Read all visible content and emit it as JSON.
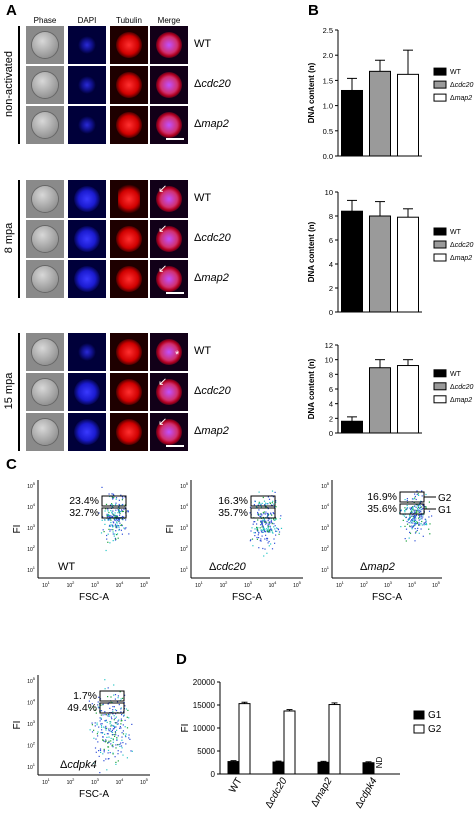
{
  "panels": {
    "A": "A",
    "B": "B",
    "C": "C",
    "D": "D"
  },
  "panelA": {
    "columns": [
      "Phase",
      "DAPI",
      "Tubulin",
      "Merge"
    ],
    "groups": [
      {
        "label": "non-activated",
        "strains": [
          "WT",
          "Δcdc20",
          "Δmap2"
        ]
      },
      {
        "label": "8 mpa",
        "strains": [
          "WT",
          "Δcdc20",
          "Δmap2"
        ]
      },
      {
        "label": "15 mpa",
        "strains": [
          "WT",
          "Δcdc20",
          "Δmap2"
        ]
      }
    ]
  },
  "chart_data": [
    {
      "id": "B1",
      "type": "bar",
      "categories": [
        "WT",
        "Δcdc20",
        "Δmap2"
      ],
      "values": [
        1.3,
        1.68,
        1.62
      ],
      "errors": [
        0.24,
        0.22,
        0.48
      ],
      "ylabel": "DNA content (n)",
      "ylim": [
        0,
        2.5
      ],
      "yticks": [
        "0.0",
        "0.5",
        "1.0",
        "1.5",
        "2.0",
        "2.5"
      ],
      "colors": [
        "#000000",
        "#9a9a9a",
        "#ffffff"
      ],
      "legend": [
        "WT",
        "Δcdc20",
        "Δmap2"
      ],
      "legend_position": "right"
    },
    {
      "id": "B2",
      "type": "bar",
      "categories": [
        "WT",
        "Δcdc20",
        "Δmap2"
      ],
      "values": [
        8.4,
        8.0,
        7.9
      ],
      "errors": [
        0.9,
        1.2,
        0.7
      ],
      "ylabel": "DNA content (n)",
      "ylim": [
        0,
        10
      ],
      "yticks": [
        "0",
        "2",
        "4",
        "6",
        "8",
        "10"
      ],
      "colors": [
        "#000000",
        "#9a9a9a",
        "#ffffff"
      ],
      "legend": [
        "WT",
        "Δcdc20",
        "Δmap2"
      ],
      "legend_position": "right"
    },
    {
      "id": "B3",
      "type": "bar",
      "categories": [
        "WT",
        "Δcdc20",
        "Δmap2"
      ],
      "values": [
        1.6,
        8.9,
        9.2
      ],
      "errors": [
        0.6,
        1.1,
        0.8
      ],
      "ylabel": "DNA content (n)",
      "ylim": [
        0,
        12
      ],
      "yticks": [
        "0",
        "2",
        "4",
        "6",
        "8",
        "10",
        "12"
      ],
      "colors": [
        "#000000",
        "#9a9a9a",
        "#ffffff"
      ],
      "legend": [
        "WT",
        "Δcdc20",
        "Δmap2"
      ],
      "legend_position": "right"
    },
    {
      "id": "C1",
      "type": "scatter",
      "strain": "WT",
      "gates": [
        "23.4%",
        "32.7%"
      ],
      "xlabel": "FSC-A",
      "ylabel": "FI"
    },
    {
      "id": "C2",
      "type": "scatter",
      "strain": "Δcdc20",
      "gates": [
        "16.3%",
        "35.7%"
      ],
      "xlabel": "FSC-A",
      "ylabel": "FI"
    },
    {
      "id": "C3",
      "type": "scatter",
      "strain": "Δmap2",
      "gates": [
        "16.9%",
        "35.6%"
      ],
      "gate_labels": [
        "G2",
        "G1"
      ],
      "xlabel": "FSC-A",
      "ylabel": "FI"
    },
    {
      "id": "C4",
      "type": "scatter",
      "strain": "Δcdpk4",
      "gates": [
        "1.7%",
        "49.4%"
      ],
      "xlabel": "FSC-A",
      "ylabel": "FI"
    },
    {
      "id": "D",
      "type": "bar",
      "categories": [
        "WT",
        "Δcdc20",
        "Δmap2",
        "Δcdpk4"
      ],
      "series": [
        {
          "name": "G1",
          "values": [
            2700,
            2600,
            2550,
            2450
          ],
          "errors": [
            200,
            200,
            200,
            200
          ],
          "color": "#000000"
        },
        {
          "name": "G2",
          "values": [
            15300,
            13700,
            15100,
            null
          ],
          "errors": [
            300,
            300,
            350,
            null
          ],
          "color": "#ffffff"
        }
      ],
      "annotation": "ND",
      "ylabel": "FI",
      "ylim": [
        0,
        20000
      ],
      "yticks": [
        "0",
        "5000",
        "10000",
        "15000",
        "20000"
      ],
      "legend_position": "right"
    }
  ],
  "axis_tick_labels": {
    "exp": [
      "10",
      "10",
      "10",
      "10",
      "10"
    ],
    "pow": [
      "1",
      "2",
      "3",
      "4",
      "5"
    ]
  }
}
